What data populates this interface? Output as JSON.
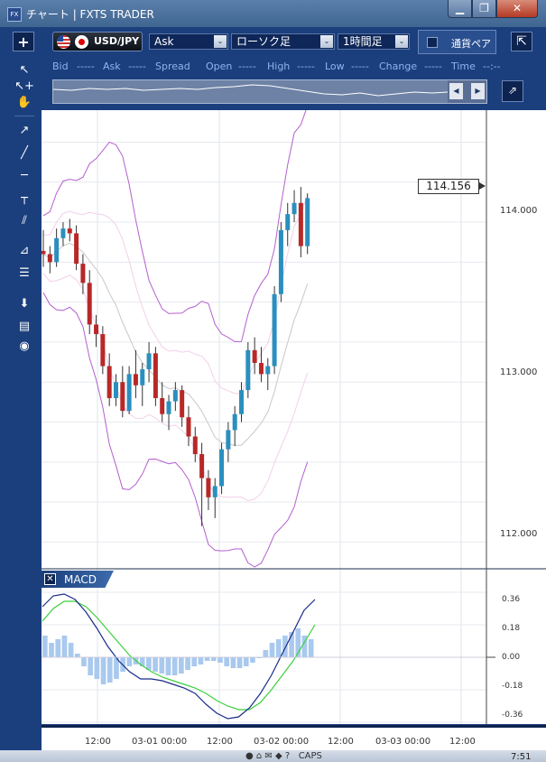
{
  "window": {
    "title": "チャート | FXTS TRADER",
    "icon": "fx-app-icon",
    "minimize": "▁",
    "maximize": "❐",
    "close": "✕"
  },
  "toolbar": {
    "add_label": "+",
    "symbol": "USD/JPY",
    "price_type": "Ask",
    "chart_type": "ローソク足",
    "period": "1時間足",
    "compare_label": "通貨ペア",
    "collapse_label": "⇱",
    "dropdown_arrow": "⌄"
  },
  "quote": {
    "bid_label": "Bid",
    "bid_value": "-----",
    "ask_label": "Ask",
    "ask_value": "-----",
    "spread_label": "Spread",
    "open_label": "Open",
    "open_value": "-----",
    "high_label": "High",
    "high_value": "-----",
    "low_label": "Low",
    "low_value": "-----",
    "change_label": "Change",
    "change_value": "-----",
    "time_label": "Time",
    "time_value": "--:--"
  },
  "navigator": {
    "left": "◀",
    "right": "▶",
    "jump": "⇗"
  },
  "tools": [
    "↖",
    "↖+",
    "✋",
    "↗",
    "╱",
    "─",
    "┬",
    "⫽",
    "⊿",
    "☰",
    "⬇",
    "▤",
    "◉"
  ],
  "price_badge": "114.156",
  "chart_data": {
    "type": "candlestick",
    "y_axis_labels": [
      "114.000",
      "113.000",
      "112.000"
    ],
    "ylim": [
      111.85,
      114.7
    ],
    "x_axis_labels": [
      "12:00",
      "03-01 00:00",
      "12:00",
      "03-02 00:00",
      "12:00",
      "03-03 00:00",
      "12:00"
    ],
    "current_price": 114.156,
    "candles": [
      [
        113.82,
        113.95,
        113.72,
        113.8
      ],
      [
        113.8,
        113.85,
        113.68,
        113.75
      ],
      [
        113.75,
        113.96,
        113.72,
        113.9
      ],
      [
        113.9,
        114.0,
        113.85,
        113.96
      ],
      [
        113.96,
        114.02,
        113.88,
        113.93
      ],
      [
        113.93,
        113.98,
        113.7,
        113.74
      ],
      [
        113.74,
        113.8,
        113.55,
        113.62
      ],
      [
        113.62,
        113.7,
        113.3,
        113.36
      ],
      [
        113.36,
        113.42,
        113.22,
        113.3
      ],
      [
        113.3,
        113.35,
        113.05,
        113.1
      ],
      [
        113.1,
        113.18,
        112.85,
        112.9
      ],
      [
        112.9,
        113.05,
        112.85,
        113.0
      ],
      [
        113.0,
        113.1,
        112.78,
        112.82
      ],
      [
        112.82,
        113.1,
        112.8,
        113.05
      ],
      [
        113.05,
        113.2,
        112.9,
        112.98
      ],
      [
        112.98,
        113.12,
        112.85,
        113.08
      ],
      [
        113.08,
        113.25,
        113.0,
        113.18
      ],
      [
        113.18,
        113.22,
        112.85,
        112.9
      ],
      [
        112.9,
        113.0,
        112.75,
        112.8
      ],
      [
        112.8,
        112.92,
        112.7,
        112.88
      ],
      [
        112.88,
        113.0,
        112.82,
        112.95
      ],
      [
        112.95,
        112.98,
        112.72,
        112.78
      ],
      [
        112.78,
        112.85,
        112.6,
        112.66
      ],
      [
        112.66,
        112.72,
        112.5,
        112.55
      ],
      [
        112.55,
        112.62,
        112.1,
        112.4
      ],
      [
        112.4,
        112.45,
        112.2,
        112.28
      ],
      [
        112.28,
        112.4,
        112.15,
        112.35
      ],
      [
        112.35,
        112.62,
        112.3,
        112.58
      ],
      [
        112.58,
        112.75,
        112.5,
        112.7
      ],
      [
        112.7,
        112.85,
        112.6,
        112.8
      ],
      [
        112.8,
        113.0,
        112.75,
        112.95
      ],
      [
        112.95,
        113.25,
        112.9,
        113.2
      ],
      [
        113.2,
        113.28,
        113.05,
        113.12
      ],
      [
        113.12,
        113.22,
        113.0,
        113.05
      ],
      [
        113.05,
        113.15,
        112.95,
        113.1
      ],
      [
        113.1,
        113.6,
        113.05,
        113.55
      ],
      [
        113.55,
        114.0,
        113.5,
        113.95
      ],
      [
        113.95,
        114.12,
        113.85,
        114.05
      ],
      [
        114.05,
        114.2,
        114.0,
        114.12
      ],
      [
        114.12,
        114.22,
        113.78,
        113.85
      ],
      [
        113.85,
        114.18,
        113.8,
        114.15
      ]
    ],
    "macd": {
      "y_axis_labels": [
        "0.36",
        "0.18",
        "0.00",
        "-0.18",
        "-0.36"
      ],
      "ylim": [
        -0.4,
        0.4
      ],
      "macd_line": [
        0.28,
        0.34,
        0.35,
        0.32,
        0.25,
        0.16,
        0.06,
        -0.02,
        -0.08,
        -0.12,
        -0.12,
        -0.13,
        -0.15,
        -0.17,
        -0.2,
        -0.26,
        -0.31,
        -0.34,
        -0.33,
        -0.28,
        -0.2,
        -0.1,
        0.02,
        0.14,
        0.26,
        0.32
      ],
      "signal_line": [
        0.2,
        0.27,
        0.31,
        0.31,
        0.28,
        0.22,
        0.15,
        0.08,
        0.01,
        -0.04,
        -0.08,
        -0.11,
        -0.13,
        -0.15,
        -0.17,
        -0.2,
        -0.24,
        -0.27,
        -0.29,
        -0.29,
        -0.25,
        -0.18,
        -0.1,
        -0.02,
        0.08,
        0.18
      ],
      "histogram": [
        0.12,
        0.08,
        0.1,
        0.12,
        0.08,
        0.02,
        -0.05,
        -0.1,
        -0.12,
        -0.15,
        -0.14,
        -0.12,
        -0.08,
        -0.05,
        -0.04,
        -0.05,
        -0.07,
        -0.08,
        -0.09,
        -0.1,
        -0.1,
        -0.09,
        -0.07,
        -0.05,
        -0.04,
        -0.02,
        -0.02,
        -0.03,
        -0.05,
        -0.06,
        -0.06,
        -0.05,
        -0.03,
        0.0,
        0.04,
        0.08,
        0.1,
        0.12,
        0.14,
        0.16,
        0.12,
        0.1
      ]
    }
  },
  "macd_panel": {
    "close": "✕",
    "label": "MACD"
  },
  "taskbar": {
    "caps": "CAPS",
    "clock": "7:51"
  }
}
